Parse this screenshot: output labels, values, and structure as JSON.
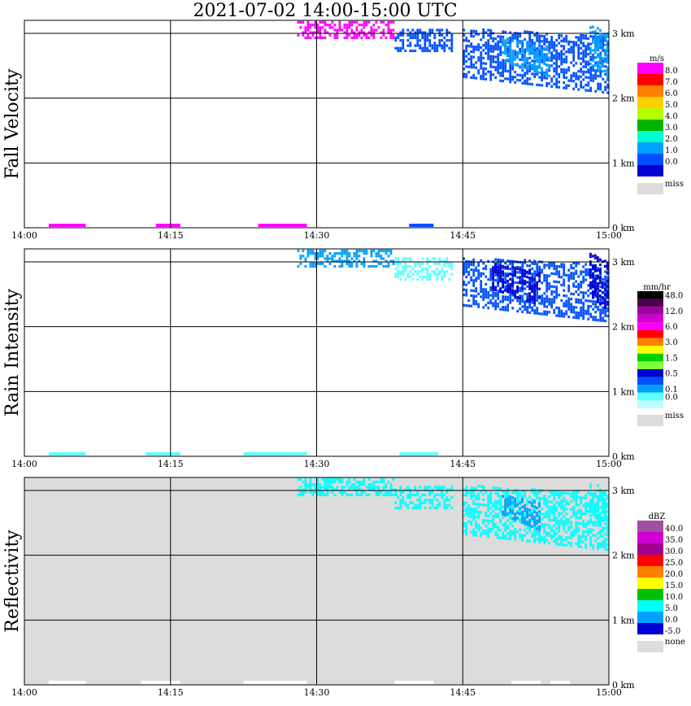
{
  "title": "2021-07-02  14:00-15:00 UTC",
  "colors": {
    "missing_fill": "#dcdcdc",
    "frame": "#000000"
  },
  "chart_data": [
    {
      "type": "heatmap",
      "panel": "Fall Velocity",
      "ylabel": "Fall Velocity",
      "x_ticks": [
        "14:00",
        "14:15",
        "14:30",
        "14:45",
        "15:00"
      ],
      "y_ticks": [
        "0 km",
        "1 km",
        "2 km",
        "3 km"
      ],
      "xlim": [
        "14:00",
        "15:00"
      ],
      "ylim": [
        0,
        3.2
      ],
      "grid": true,
      "background": "#ffffff",
      "legend": {
        "unit": "m/s",
        "levels": [
          "8.0",
          "7.0",
          "6.0",
          "5.0",
          "4.0",
          "3.0",
          "2.0",
          "1.0",
          "0.0"
        ],
        "colors": [
          "#ff00ff",
          "#ff0000",
          "#ff7f00",
          "#ffd000",
          "#b4ff00",
          "#00b400",
          "#00ffd0",
          "#00a0ff",
          "#0050ff",
          "#0000d0"
        ],
        "missing_label": "miss"
      },
      "cloud_layers": [
        {
          "start_min": 28,
          "end_min": 38,
          "bottom_km": 2.95,
          "top_km": 3.2,
          "level_index": 0
        },
        {
          "start_min": 38,
          "end_min": 44,
          "bottom_km": 2.75,
          "top_km": 3.1,
          "level_index": 8
        },
        {
          "start_min": 45,
          "end_min": 60,
          "bottom_km": 2.35,
          "top_km": 3.1,
          "level_index": 8
        },
        {
          "start_min": 49,
          "end_min": 54,
          "bottom_km": 2.6,
          "top_km": 2.95,
          "level_index": 7
        },
        {
          "start_min": 58,
          "end_min": 60,
          "bottom_km": 2.55,
          "top_km": 3.15,
          "level_index": 7
        }
      ],
      "surface_segments": [
        {
          "start_min": 2.5,
          "end_min": 6.3,
          "level_index": 0
        },
        {
          "start_min": 13.5,
          "end_min": 16,
          "level_index": 0
        },
        {
          "start_min": 24,
          "end_min": 29,
          "level_index": 0
        },
        {
          "start_min": 39.5,
          "end_min": 42,
          "level_index": 8
        }
      ]
    },
    {
      "type": "heatmap",
      "panel": "Rain Intensity",
      "ylabel": "Rain Intensity",
      "x_ticks": [
        "14:00",
        "14:15",
        "14:30",
        "14:45",
        "15:00"
      ],
      "y_ticks": [
        "0 km",
        "1 km",
        "2 km",
        "3 km"
      ],
      "xlim": [
        "14:00",
        "15:00"
      ],
      "ylim": [
        0,
        3.2
      ],
      "grid": true,
      "background": "#ffffff",
      "legend": {
        "unit": "mm/hr",
        "levels": [
          "48.0",
          "12.0",
          "6.0",
          "3.0",
          "1.5",
          "0.5",
          "0.1",
          "0.0"
        ],
        "level_rows": [
          0,
          2,
          4,
          6,
          8,
          10,
          12,
          13
        ],
        "colors": [
          "#000000",
          "#500050",
          "#a000a0",
          "#d000d0",
          "#ff00ff",
          "#ff0000",
          "#ff7f00",
          "#ffff00",
          "#00d000",
          "#80ff40",
          "#0000d0",
          "#0050ff",
          "#00a0ff",
          "#60ffff",
          "#c0ffff"
        ],
        "missing_label": "miss"
      },
      "cloud_layers": [
        {
          "start_min": 28,
          "end_min": 38,
          "bottom_km": 2.95,
          "top_km": 3.2,
          "level_index": 12
        },
        {
          "start_min": 38,
          "end_min": 44,
          "bottom_km": 2.75,
          "top_km": 3.1,
          "level_index": 13
        },
        {
          "start_min": 45,
          "end_min": 60,
          "bottom_km": 2.35,
          "top_km": 3.1,
          "level_index": 11
        },
        {
          "start_min": 48,
          "end_min": 53,
          "bottom_km": 2.6,
          "top_km": 3.0,
          "level_index": 10
        },
        {
          "start_min": 58,
          "end_min": 60,
          "bottom_km": 2.5,
          "top_km": 3.15,
          "level_index": 10
        }
      ],
      "surface_segments": [
        {
          "start_min": 2.5,
          "end_min": 6.3,
          "level_index": 13
        },
        {
          "start_min": 12.5,
          "end_min": 16,
          "level_index": 13
        },
        {
          "start_min": 22.5,
          "end_min": 29,
          "level_index": 13
        },
        {
          "start_min": 38.5,
          "end_min": 42.5,
          "level_index": 13
        }
      ]
    },
    {
      "type": "heatmap",
      "panel": "Reflectivity",
      "ylabel": "Reflectivity",
      "x_ticks": [
        "14:00",
        "14:15",
        "14:30",
        "14:45",
        "15:00"
      ],
      "y_ticks": [
        "0 km",
        "1 km",
        "2 km",
        "3 km"
      ],
      "xlim": [
        "14:00",
        "15:00"
      ],
      "ylim": [
        0,
        3.2
      ],
      "grid": true,
      "background": "#dcdcdc",
      "legend": {
        "unit": "dBZ",
        "levels": [
          "40.0",
          "35.0",
          "30.0",
          "25.0",
          "20.0",
          "15.0",
          "10.0",
          "5.0",
          "0.0",
          "-5.0"
        ],
        "colors": [
          "#a050a0",
          "#d000d0",
          "#a00090",
          "#ff0000",
          "#ff7f00",
          "#ffff00",
          "#00c000",
          "#00ffff",
          "#00a0ff",
          "#0000d0"
        ],
        "missing_label": "none"
      },
      "cloud_layers": [
        {
          "start_min": 28,
          "end_min": 38,
          "bottom_km": 2.95,
          "top_km": 3.2,
          "level_index": 7
        },
        {
          "start_min": 38,
          "end_min": 44,
          "bottom_km": 2.75,
          "top_km": 3.1,
          "level_index": 7
        },
        {
          "start_min": 45,
          "end_min": 60,
          "bottom_km": 2.35,
          "top_km": 3.1,
          "level_index": 7
        },
        {
          "start_min": 49,
          "end_min": 53,
          "bottom_km": 2.65,
          "top_km": 2.95,
          "level_index": 8
        },
        {
          "start_min": 58,
          "end_min": 60,
          "bottom_km": 2.55,
          "top_km": 3.15,
          "level_index": 7
        }
      ],
      "surface_segments": [
        {
          "start_min": 2.5,
          "end_min": 6.3,
          "level_index": -1
        },
        {
          "start_min": 12,
          "end_min": 16,
          "level_index": -1
        },
        {
          "start_min": 22.5,
          "end_min": 29,
          "level_index": -1
        },
        {
          "start_min": 38,
          "end_min": 42,
          "level_index": -1
        },
        {
          "start_min": 50,
          "end_min": 53,
          "level_index": -1
        },
        {
          "start_min": 54,
          "end_min": 56,
          "level_index": -1
        }
      ]
    }
  ]
}
